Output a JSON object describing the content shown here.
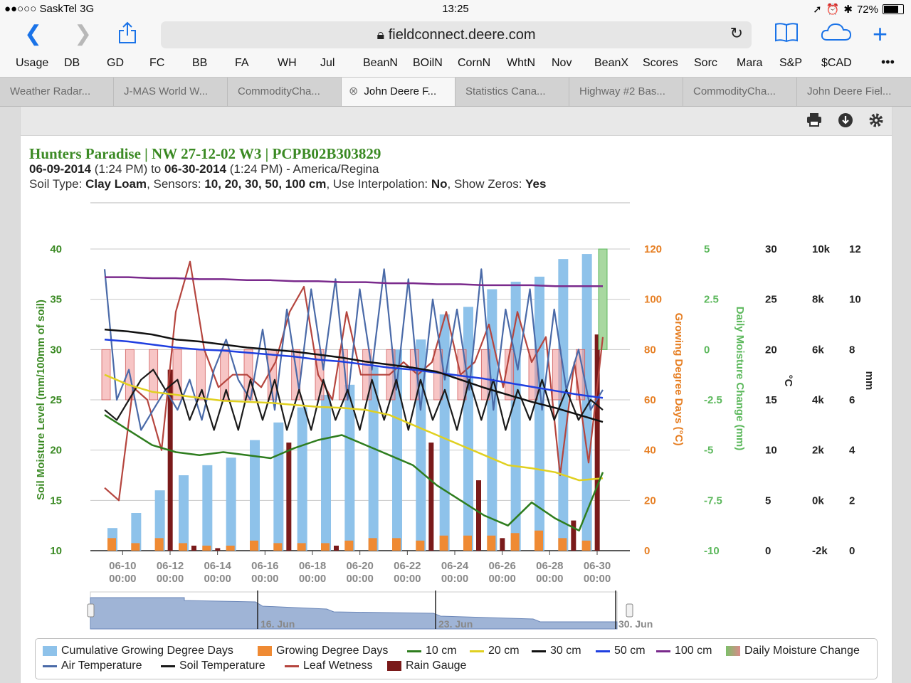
{
  "status": {
    "carrier": "●●○○○ SaskTel  3G",
    "time": "13:25",
    "battery": "72%"
  },
  "browser": {
    "url": "fieldconnect.deere.com",
    "bookmarks": [
      "Usage",
      "DB",
      "GD",
      "FC",
      "BB",
      "FA",
      "WH",
      "Jul",
      "BeanN",
      "BOilN",
      "CornN",
      "WhtN",
      "Nov",
      "BeanX",
      "Scores",
      "Sorc",
      "Mara",
      "S&P",
      "$CAD",
      "•••"
    ],
    "tabs": [
      "Weather Radar...",
      "J-MAS World W...",
      "CommodityCha...",
      "John Deere F...",
      "Statistics Cana...",
      "Highway #2 Bas...",
      "CommodityCha...",
      "John Deere Fiel..."
    ],
    "active_tab": 3
  },
  "header": {
    "title": "Hunters Paradise | NW 27-12-02 W3 | PCPB02B303829",
    "start": "06-09-2014",
    "start_time": "(1:24 PM)",
    "to": "to",
    "end": "06-30-2014",
    "end_time": "(1:24 PM)",
    "tz": "- America/Regina",
    "soil_label": "Soil Type:",
    "soil": "Clay Loam",
    "sensors_label": ", Sensors:",
    "sensors": "10, 20, 30, 50, 100 cm",
    "interp_label": ", Use Interpolation:",
    "interp": "No",
    "zeros_label": ", Show Zeros:",
    "zeros": "Yes"
  },
  "chart_data": {
    "type": "line",
    "x_ticks": [
      [
        "06-10",
        "00:00"
      ],
      [
        "06-12",
        "00:00"
      ],
      [
        "06-14",
        "00:00"
      ],
      [
        "06-16",
        "00:00"
      ],
      [
        "06-18",
        "00:00"
      ],
      [
        "06-20",
        "00:00"
      ],
      [
        "06-22",
        "00:00"
      ],
      [
        "06-24",
        "00:00"
      ],
      [
        "06-26",
        "00:00"
      ],
      [
        "06-28",
        "00:00"
      ],
      [
        "06-30",
        "00:00"
      ]
    ],
    "axes": [
      {
        "title": "Soil Moisture Level (mm/100mm of soil)",
        "color": "#3b8a24",
        "ticks": [
          "40",
          "35",
          "30",
          "25",
          "20",
          "15",
          "10"
        ],
        "range": [
          10,
          40
        ]
      },
      {
        "title": "Growing Degree Days (°C)",
        "color": "#e67e22",
        "ticks": [
          "120",
          "100",
          "80",
          "60",
          "40",
          "20",
          "0"
        ],
        "range": [
          0,
          120
        ]
      },
      {
        "title": "Daily Moisture Change (mm)",
        "color": "#5cb85c",
        "ticks": [
          "5",
          "2.5",
          "0",
          "-2.5",
          "-5",
          "-7.5",
          "-10"
        ],
        "range": [
          -10,
          5
        ]
      },
      {
        "title": "°C",
        "color": "#222",
        "ticks": [
          "30",
          "25",
          "20",
          "15",
          "10",
          "5",
          "0"
        ],
        "range": [
          0,
          30
        ]
      },
      {
        "title": "",
        "color": "#222",
        "ticks": [
          "10k",
          "8k",
          "6k",
          "4k",
          "2k",
          "0k",
          "-2k"
        ],
        "range": [
          -2000,
          10000
        ]
      },
      {
        "title": "mm",
        "color": "#222",
        "ticks": [
          "12",
          "10",
          "8",
          "6",
          "4",
          "2",
          "0"
        ],
        "range": [
          0,
          12
        ]
      }
    ],
    "navigator_labels": [
      "16. Jun",
      "23. Jun",
      "30. Jun"
    ],
    "cumulative_gdd": [
      9,
      15,
      24,
      30,
      34,
      37,
      44,
      51,
      57,
      62,
      66,
      73,
      80,
      84,
      94,
      97,
      104,
      107,
      109,
      116,
      118
    ],
    "daily_gdd": [
      5,
      3,
      5,
      3,
      2,
      2,
      4,
      3,
      3,
      3,
      4,
      5,
      5,
      4,
      6,
      6,
      6,
      7,
      8,
      5,
      4
    ],
    "rain_gauge_mm": [
      0,
      0,
      7.2,
      0.2,
      0.1,
      0,
      0,
      4.3,
      0,
      0.2,
      0,
      0,
      0,
      4.3,
      0,
      2.8,
      0.5,
      0,
      0,
      1.2,
      8.6
    ],
    "daily_moisture_change": {
      "day": 21,
      "value": 5
    },
    "series": [
      {
        "name": "10 cm",
        "color": "#2e7d1e",
        "values": [
          23.5,
          22.0,
          20.5,
          19.8,
          19.5,
          19.8,
          19.5,
          19.2,
          20.2,
          21.0,
          21.5,
          20.5,
          19.5,
          18.5,
          16.5,
          15.0,
          13.5,
          12.5,
          14.8,
          13.2,
          12.0,
          17.8
        ]
      },
      {
        "name": "20 cm",
        "color": "#e0d020",
        "values": [
          27.5,
          26.5,
          25.8,
          25.5,
          25.2,
          24.9,
          24.8,
          24.7,
          24.5,
          24.3,
          24.2,
          24.0,
          23.5,
          22.5,
          21.5,
          20.5,
          19.5,
          18.5,
          18.2,
          17.8,
          17.0,
          17.2
        ]
      },
      {
        "name": "30 cm",
        "color": "#111111",
        "values": [
          32.0,
          31.8,
          31.5,
          31.0,
          30.8,
          30.5,
          30.2,
          30.0,
          29.8,
          29.5,
          29.2,
          28.8,
          28.5,
          28.2,
          27.8,
          27.0,
          26.2,
          25.5,
          24.8,
          24.2,
          23.5,
          22.8
        ]
      },
      {
        "name": "50 cm",
        "color": "#1f3fe0",
        "values": [
          31.0,
          30.8,
          30.5,
          30.2,
          30.0,
          29.9,
          29.7,
          29.5,
          29.3,
          29.0,
          28.8,
          28.5,
          28.2,
          28.0,
          27.7,
          27.4,
          27.1,
          26.7,
          26.3,
          25.9,
          25.5,
          25.2
        ]
      },
      {
        "name": "100 cm",
        "color": "#7a2a8c",
        "values": [
          37.2,
          37.2,
          37.1,
          37.1,
          37.0,
          37.0,
          36.9,
          36.9,
          36.8,
          36.8,
          36.7,
          36.7,
          36.6,
          36.6,
          36.5,
          36.5,
          36.4,
          36.4,
          36.4,
          36.3,
          36.3,
          36.3
        ]
      },
      {
        "name": "Air Temperature",
        "color": "#4a6aa8",
        "values": [
          28,
          15,
          18,
          12,
          14,
          16,
          14,
          17,
          13,
          18,
          21,
          17,
          15,
          22,
          14,
          24,
          16,
          26,
          18,
          27,
          15,
          26,
          18,
          28,
          16,
          27,
          14,
          25,
          17,
          24,
          16,
          28,
          14,
          24,
          18,
          26,
          14,
          24,
          16,
          20,
          14,
          16
        ]
      },
      {
        "name": "Soil Temperature",
        "color": "#1a1a1a",
        "values": [
          14,
          13,
          15,
          17,
          18,
          16,
          17,
          13,
          16,
          12,
          16,
          12,
          17,
          13,
          17,
          12,
          16,
          12,
          17,
          13,
          16,
          12,
          17,
          13,
          17,
          12,
          17,
          13,
          16,
          12,
          17,
          13,
          17,
          12,
          16,
          13,
          17,
          13,
          16,
          13,
          15,
          14
        ]
      },
      {
        "name": "Leaf Wetness",
        "color": "#b5453e",
        "values": [
          2.5,
          2.0,
          6.5,
          6.0,
          4.0,
          9.5,
          11.5,
          8.0,
          6.5,
          7.0,
          7.0,
          6.5,
          7.5,
          9.5,
          10.5,
          7.0,
          6.0,
          9.5,
          7.0,
          7.0,
          7.0,
          7.5,
          7.0,
          7.5,
          9.5,
          7.0,
          7.5,
          9.0,
          6.5,
          9.5,
          7.5,
          8.5,
          3.0,
          7.5,
          3.5,
          8.5
        ]
      }
    ]
  },
  "legend": [
    {
      "label": "Cumulative Growing Degree Days",
      "color": "#8ec2ea",
      "kind": "box"
    },
    {
      "label": "Growing Degree Days",
      "color": "#ef8a33",
      "kind": "box"
    },
    {
      "label": "10 cm",
      "color": "#2e7d1e",
      "kind": "line"
    },
    {
      "label": "20 cm",
      "color": "#e0d020",
      "kind": "line"
    },
    {
      "label": "30 cm",
      "color": "#111111",
      "kind": "line"
    },
    {
      "label": "50 cm",
      "color": "#1f3fe0",
      "kind": "line"
    },
    {
      "label": "100 cm",
      "color": "#7a2a8c",
      "kind": "line"
    },
    {
      "label": "Daily Moisture Change",
      "color": "#7dc06a",
      "kind": "box"
    },
    {
      "label": "Air Temperature",
      "color": "#4a6aa8",
      "kind": "line"
    },
    {
      "label": "Soil Temperature",
      "color": "#1a1a1a",
      "kind": "line"
    },
    {
      "label": "Leaf Wetness",
      "color": "#b5453e",
      "kind": "line"
    },
    {
      "label": "Rain Gauge",
      "color": "#7a1a1a",
      "kind": "box"
    }
  ],
  "icons": {
    "print": "printer-icon",
    "download": "download-icon",
    "settings": "gear-icon"
  }
}
